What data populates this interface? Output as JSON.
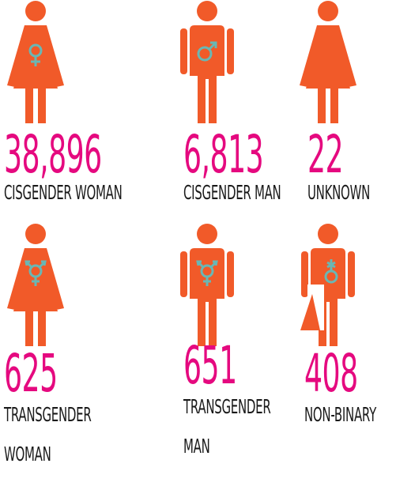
{
  "items": [
    {
      "value": "38,896",
      "label": "CISGENDER WOMAN"
    },
    {
      "value": "6,813",
      "label": "CISGENDER MAN"
    },
    {
      "value": "22",
      "label": "UNKNOWN"
    },
    {
      "value": "625",
      "label": "TRANSGENDER WOMAN"
    },
    {
      "value": "651",
      "label": "TRANSGENDER MAN"
    },
    {
      "value": "408",
      "label": "NON-BINARY"
    }
  ]
}
